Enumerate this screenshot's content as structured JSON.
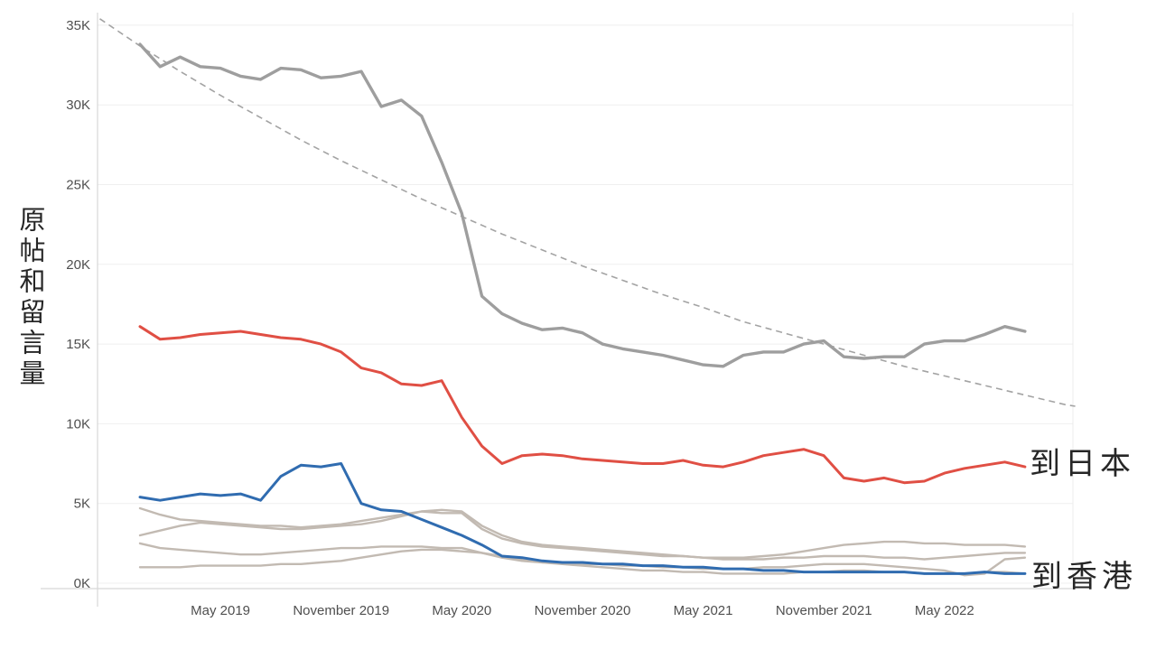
{
  "page": {
    "background": "#ffffff"
  },
  "chart_data": {
    "type": "line",
    "title": "",
    "xlabel": "",
    "ylabel": "原帖和留言量",
    "y_unit": "K (thousands of posts and comments)",
    "ylim_k": [
      0,
      36
    ],
    "grid": "horizontal-light",
    "legend": "none (direct labels at line ends)",
    "x_months": [
      "2019-01",
      "2019-02",
      "2019-03",
      "2019-04",
      "2019-05",
      "2019-06",
      "2019-07",
      "2019-08",
      "2019-09",
      "2019-10",
      "2019-11",
      "2019-12",
      "2020-01",
      "2020-02",
      "2020-03",
      "2020-04",
      "2020-05",
      "2020-06",
      "2020-07",
      "2020-08",
      "2020-09",
      "2020-10",
      "2020-11",
      "2020-12",
      "2021-01",
      "2021-02",
      "2021-03",
      "2021-04",
      "2021-05",
      "2021-06",
      "2021-07",
      "2021-08",
      "2021-09",
      "2021-10",
      "2021-11",
      "2021-12",
      "2022-01",
      "2022-02",
      "2022-03",
      "2022-04",
      "2022-05",
      "2022-06",
      "2022-07",
      "2022-08",
      "2022-09"
    ],
    "x_ticks": [
      {
        "label": "May 2019",
        "month_index": 4
      },
      {
        "label": "November 2019",
        "month_index": 10
      },
      {
        "label": "May 2020",
        "month_index": 16
      },
      {
        "label": "November 2020",
        "month_index": 22
      },
      {
        "label": "May 2021",
        "month_index": 28
      },
      {
        "label": "November 2021",
        "month_index": 34
      },
      {
        "label": "May 2022",
        "month_index": 40
      }
    ],
    "y_ticks": [
      {
        "label": "0K",
        "value_k": 0
      },
      {
        "label": "5K",
        "value_k": 5
      },
      {
        "label": "10K",
        "value_k": 10
      },
      {
        "label": "15K",
        "value_k": 15
      },
      {
        "label": "20K",
        "value_k": 20
      },
      {
        "label": "25K",
        "value_k": 25
      },
      {
        "label": "30K",
        "value_k": 30
      },
      {
        "label": "35K",
        "value_k": 35
      }
    ],
    "series": [
      {
        "id": "overall-gray",
        "label": "",
        "color": "#9e9e9e",
        "width": 3.4,
        "z": 5,
        "values_k": [
          33.8,
          32.4,
          33.0,
          32.4,
          32.3,
          31.8,
          31.6,
          32.3,
          32.2,
          31.7,
          31.8,
          32.1,
          29.9,
          30.3,
          29.3,
          26.4,
          23.2,
          18.0,
          16.9,
          16.3,
          15.9,
          16.0,
          15.7,
          15.0,
          14.7,
          14.5,
          14.3,
          14.0,
          13.7,
          13.6,
          14.3,
          14.5,
          14.5,
          15.0,
          15.2,
          14.2,
          14.1,
          14.2,
          14.2,
          15.0,
          15.2,
          15.2,
          15.6,
          16.1,
          15.8
        ]
      },
      {
        "id": "to-japan",
        "label": "到日本",
        "color": "#e04f44",
        "width": 3.0,
        "z": 6,
        "values_k": [
          16.1,
          15.3,
          15.4,
          15.6,
          15.7,
          15.8,
          15.6,
          15.4,
          15.3,
          15.0,
          14.5,
          13.5,
          13.2,
          12.5,
          12.4,
          12.7,
          10.4,
          8.6,
          7.5,
          8.0,
          8.1,
          8.0,
          7.8,
          7.7,
          7.6,
          7.5,
          7.5,
          7.7,
          7.4,
          7.3,
          7.6,
          8.0,
          8.2,
          8.4,
          8.0,
          6.6,
          6.4,
          6.6,
          6.3,
          6.4,
          6.9,
          7.2,
          7.4,
          7.6,
          7.3
        ]
      },
      {
        "id": "to-hongkong",
        "label": "到香港",
        "color": "#306cb0",
        "width": 3.0,
        "z": 7,
        "values_k": [
          5.4,
          5.2,
          5.4,
          5.6,
          5.5,
          5.6,
          5.2,
          6.7,
          7.4,
          7.3,
          7.5,
          5.0,
          4.6,
          4.5,
          4.0,
          3.5,
          3.0,
          2.4,
          1.7,
          1.6,
          1.4,
          1.3,
          1.3,
          1.2,
          1.2,
          1.1,
          1.1,
          1.0,
          1.0,
          0.9,
          0.9,
          0.8,
          0.8,
          0.7,
          0.7,
          0.7,
          0.7,
          0.7,
          0.7,
          0.6,
          0.6,
          0.6,
          0.7,
          0.6,
          0.6
        ]
      },
      {
        "id": "other-1",
        "label": "",
        "color": "#c2bab2",
        "width": 2.4,
        "z": 1,
        "values_k": [
          4.7,
          4.3,
          4.0,
          3.9,
          3.8,
          3.7,
          3.6,
          3.6,
          3.5,
          3.6,
          3.7,
          3.9,
          4.1,
          4.3,
          4.5,
          4.4,
          4.4,
          3.4,
          2.8,
          2.5,
          2.3,
          2.2,
          2.1,
          2.0,
          1.9,
          1.8,
          1.7,
          1.7,
          1.6,
          1.6,
          1.6,
          1.7,
          1.8,
          2.0,
          2.2,
          2.4,
          2.5,
          2.6,
          2.6,
          2.5,
          2.5,
          2.4,
          2.4,
          2.4,
          2.3
        ]
      },
      {
        "id": "other-2",
        "label": "",
        "color": "#c2bab2",
        "width": 2.4,
        "z": 2,
        "values_k": [
          3.0,
          3.3,
          3.6,
          3.8,
          3.7,
          3.6,
          3.5,
          3.4,
          3.4,
          3.5,
          3.6,
          3.7,
          3.9,
          4.2,
          4.5,
          4.6,
          4.5,
          3.6,
          3.0,
          2.6,
          2.4,
          2.3,
          2.2,
          2.1,
          2.0,
          1.9,
          1.8,
          1.7,
          1.6,
          1.5,
          1.5,
          1.5,
          1.6,
          1.6,
          1.7,
          1.7,
          1.7,
          1.6,
          1.6,
          1.5,
          1.6,
          1.7,
          1.8,
          1.9,
          1.9
        ]
      },
      {
        "id": "other-3",
        "label": "",
        "color": "#c2bab2",
        "width": 2.4,
        "z": 3,
        "values_k": [
          2.5,
          2.2,
          2.1,
          2.0,
          1.9,
          1.8,
          1.8,
          1.9,
          2.0,
          2.1,
          2.2,
          2.2,
          2.3,
          2.3,
          2.3,
          2.2,
          2.2,
          1.9,
          1.6,
          1.4,
          1.3,
          1.3,
          1.2,
          1.2,
          1.1,
          1.1,
          1.0,
          1.0,
          0.9,
          0.9,
          0.9,
          1.0,
          1.0,
          1.1,
          1.2,
          1.2,
          1.2,
          1.1,
          1.0,
          0.9,
          0.8,
          0.5,
          0.6,
          1.5,
          1.6
        ]
      },
      {
        "id": "other-4",
        "label": "",
        "color": "#c2bab2",
        "width": 2.4,
        "z": 4,
        "values_k": [
          1.0,
          1.0,
          1.0,
          1.1,
          1.1,
          1.1,
          1.1,
          1.2,
          1.2,
          1.3,
          1.4,
          1.6,
          1.8,
          2.0,
          2.1,
          2.1,
          2.0,
          1.9,
          1.7,
          1.5,
          1.3,
          1.2,
          1.1,
          1.0,
          0.9,
          0.8,
          0.8,
          0.7,
          0.7,
          0.6,
          0.6,
          0.6,
          0.6,
          0.7,
          0.7,
          0.8,
          0.8,
          0.7,
          0.7,
          0.6,
          0.6,
          0.6,
          0.7,
          0.7,
          0.6
        ]
      }
    ],
    "trend_line": {
      "style": "dashed",
      "color": "#a3a3a3",
      "width": 1.6,
      "points_month_value": [
        [
          -2,
          35.4
        ],
        [
          0,
          33.7
        ],
        [
          2,
          32.1
        ],
        [
          4,
          30.6
        ],
        [
          6,
          29.2
        ],
        [
          8,
          27.8
        ],
        [
          10,
          26.5
        ],
        [
          12,
          25.3
        ],
        [
          14,
          24.1
        ],
        [
          16,
          23.0
        ],
        [
          18,
          21.9
        ],
        [
          20,
          20.9
        ],
        [
          22,
          19.9
        ],
        [
          24,
          19.0
        ],
        [
          26,
          18.1
        ],
        [
          28,
          17.3
        ],
        [
          30,
          16.4
        ],
        [
          32,
          15.7
        ],
        [
          34,
          15.0
        ],
        [
          36,
          14.3
        ],
        [
          38,
          13.6
        ],
        [
          40,
          13.0
        ],
        [
          42,
          12.4
        ],
        [
          44,
          11.8
        ],
        [
          46,
          11.2
        ],
        [
          46.5,
          11.1
        ]
      ]
    },
    "annotations": {
      "japan": {
        "text": "到日本"
      },
      "hongkong": {
        "text": "到香港"
      }
    },
    "colors": {
      "axis_line": "#d7d7d7",
      "gridline": "#efefef",
      "right_border": "#ececec",
      "tick_text": "#4f4f4f",
      "cjk_text": "#262626"
    }
  }
}
